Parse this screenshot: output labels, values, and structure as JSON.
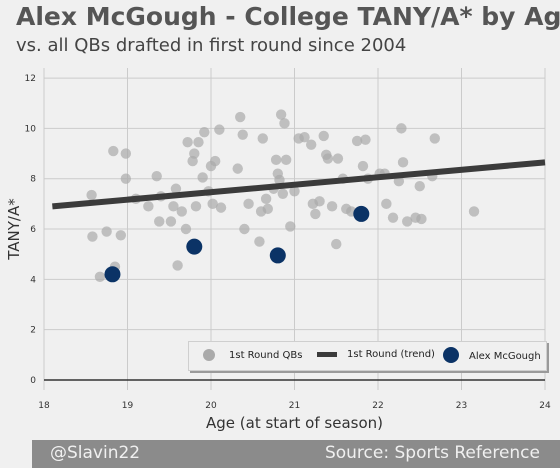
{
  "header": {
    "title": "Alex McGough - College TANY/A* by Age",
    "subtitle": "vs. all QBs drafted in first round since 2004"
  },
  "footer": {
    "left": "@Slavin22",
    "right": "Source: Sports Reference"
  },
  "colors": {
    "scatter": "#aaaaaa",
    "trend": "#3b3b3b",
    "highlight": "#0b3366",
    "grid": "#cbcbcb",
    "background": "#f0f0f0"
  },
  "chart_data": {
    "type": "scatter",
    "xlabel": "Age (at start of season)",
    "ylabel": "TANY/A*",
    "xlim": [
      18,
      24
    ],
    "ylim": [
      -0.4,
      12.4
    ],
    "xticks": [
      "18",
      "19",
      "20",
      "21",
      "22",
      "23",
      "24"
    ],
    "yticks": [
      "0",
      "2",
      "4",
      "6",
      "8",
      "10",
      "12"
    ],
    "grid": true,
    "legend": {
      "placement": "lower-right",
      "entries": [
        "1st Round QBs",
        "1st Round (trend)",
        "Alex McGough"
      ]
    },
    "series": [
      {
        "name": "1st Round QBs",
        "points": [
          [
            18.57,
            7.35
          ],
          [
            18.58,
            5.7
          ],
          [
            18.67,
            4.1
          ],
          [
            18.75,
            5.9
          ],
          [
            18.83,
            9.1
          ],
          [
            18.85,
            4.5
          ],
          [
            18.92,
            5.75
          ],
          [
            18.98,
            9.0
          ],
          [
            18.98,
            8.0
          ],
          [
            19.1,
            7.2
          ],
          [
            19.25,
            6.9
          ],
          [
            19.35,
            8.1
          ],
          [
            19.38,
            6.3
          ],
          [
            19.4,
            7.3
          ],
          [
            19.52,
            6.3
          ],
          [
            19.55,
            6.9
          ],
          [
            19.58,
            7.6
          ],
          [
            19.6,
            4.55
          ],
          [
            19.65,
            6.7
          ],
          [
            19.7,
            6.0
          ],
          [
            19.72,
            9.45
          ],
          [
            19.78,
            8.7
          ],
          [
            19.8,
            9.0
          ],
          [
            19.82,
            6.9
          ],
          [
            19.85,
            9.45
          ],
          [
            19.9,
            8.05
          ],
          [
            19.92,
            9.85
          ],
          [
            19.97,
            7.5
          ],
          [
            20.0,
            8.5
          ],
          [
            20.02,
            7.0
          ],
          [
            20.05,
            8.7
          ],
          [
            20.1,
            9.95
          ],
          [
            20.12,
            6.85
          ],
          [
            20.32,
            8.4
          ],
          [
            20.35,
            10.45
          ],
          [
            20.38,
            9.75
          ],
          [
            20.4,
            6.0
          ],
          [
            20.45,
            7.0
          ],
          [
            20.58,
            5.5
          ],
          [
            20.6,
            6.7
          ],
          [
            20.62,
            9.6
          ],
          [
            20.66,
            7.2
          ],
          [
            20.68,
            6.8
          ],
          [
            20.75,
            7.6
          ],
          [
            20.78,
            8.75
          ],
          [
            20.8,
            8.2
          ],
          [
            20.82,
            7.95
          ],
          [
            20.84,
            10.55
          ],
          [
            20.86,
            7.4
          ],
          [
            20.88,
            10.2
          ],
          [
            20.9,
            8.75
          ],
          [
            20.95,
            6.1
          ],
          [
            21.0,
            7.5
          ],
          [
            21.05,
            9.6
          ],
          [
            21.12,
            9.65
          ],
          [
            21.2,
            9.35
          ],
          [
            21.22,
            7.0
          ],
          [
            21.25,
            6.6
          ],
          [
            21.3,
            7.1
          ],
          [
            21.35,
            9.7
          ],
          [
            21.38,
            8.95
          ],
          [
            21.4,
            8.8
          ],
          [
            21.45,
            6.9
          ],
          [
            21.5,
            5.4
          ],
          [
            21.52,
            8.8
          ],
          [
            21.58,
            8.0
          ],
          [
            21.62,
            6.8
          ],
          [
            21.68,
            6.7
          ],
          [
            21.75,
            9.5
          ],
          [
            21.78,
            6.7
          ],
          [
            21.82,
            8.5
          ],
          [
            21.85,
            9.55
          ],
          [
            21.88,
            8.0
          ],
          [
            22.02,
            8.2
          ],
          [
            22.08,
            8.2
          ],
          [
            22.1,
            7.0
          ],
          [
            22.18,
            6.45
          ],
          [
            22.25,
            7.9
          ],
          [
            22.28,
            10.0
          ],
          [
            22.3,
            8.65
          ],
          [
            22.35,
            6.3
          ],
          [
            22.45,
            6.45
          ],
          [
            22.5,
            7.7
          ],
          [
            22.52,
            6.4
          ],
          [
            22.65,
            8.1
          ],
          [
            22.68,
            9.6
          ],
          [
            23.15,
            6.7
          ]
        ]
      },
      {
        "name": "1st Round (trend)",
        "line": [
          [
            18.1,
            6.9
          ],
          [
            24.0,
            8.65
          ]
        ]
      },
      {
        "name": "Alex McGough",
        "points": [
          [
            18.82,
            4.2
          ],
          [
            19.8,
            5.3
          ],
          [
            20.8,
            4.95
          ],
          [
            21.8,
            6.6
          ]
        ]
      }
    ]
  }
}
